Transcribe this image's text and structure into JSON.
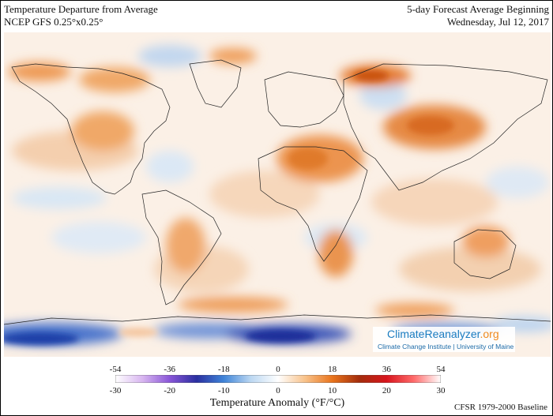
{
  "header": {
    "title": "Temperature Departure from Average",
    "model": "NCEP GFS 0.25°x0.25°",
    "forecast": "5-day Forecast Average Beginning",
    "date": "Wednesday, Jul 12, 2017"
  },
  "badge": {
    "brand": "ClimateReanalyzer",
    "tld": ".org",
    "sub": "Climate Change Institute | University of Maine"
  },
  "colorbar": {
    "title": "Temperature Anomaly (°F/°C)",
    "ticks_f": [
      "-54",
      "-36",
      "-18",
      "0",
      "18",
      "36",
      "54"
    ],
    "ticks_c": [
      "-30",
      "-20",
      "-10",
      "0",
      "10",
      "20",
      "30"
    ],
    "stops": [
      "#ffffff",
      "#d8b6f0",
      "#8a56d8",
      "#2a2fa0",
      "#3f84d8",
      "#bcd8f2",
      "#ffffff",
      "#f8c28a",
      "#e9741c",
      "#a32d0c",
      "#d8141c",
      "#ff6a6a",
      "#ffffff"
    ]
  },
  "baseline": "CFSR 1979-2000 Baseline",
  "colors": {
    "warm": "#e8863a",
    "cold": "#2f5fc8",
    "land_border": "#222222"
  }
}
